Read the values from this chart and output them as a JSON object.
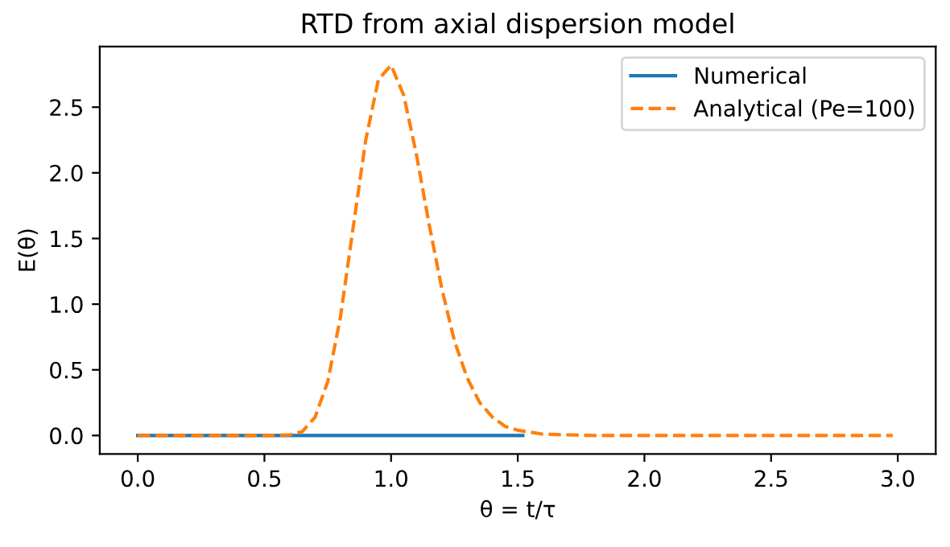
{
  "chart_data": {
    "type": "line",
    "title": "RTD from axial dispersion model",
    "xlabel": "θ = t/τ",
    "ylabel": "E(θ)",
    "xlim": [
      -0.15,
      3.15
    ],
    "ylim": [
      -0.141,
      2.962
    ],
    "xticks": [
      {
        "value": 0,
        "label": "0.0"
      },
      {
        "value": 0.5,
        "label": "0.5"
      },
      {
        "value": 1,
        "label": "1.0"
      },
      {
        "value": 1.5,
        "label": "1.5"
      },
      {
        "value": 2,
        "label": "2.0"
      },
      {
        "value": 2.5,
        "label": "2.5"
      },
      {
        "value": 3,
        "label": "3.0"
      }
    ],
    "yticks": [
      {
        "value": 0,
        "label": "0.0"
      },
      {
        "value": 0.5,
        "label": "0.5"
      },
      {
        "value": 1,
        "label": "1.0"
      },
      {
        "value": 1.5,
        "label": "1.5"
      },
      {
        "value": 2,
        "label": "2.0"
      },
      {
        "value": 2.5,
        "label": "2.5"
      }
    ],
    "legend": "top right",
    "grid": false,
    "series": [
      {
        "name": "Numerical",
        "color": "#1f77b4",
        "line_style": "solid",
        "x": [
          0,
          0.5,
          1.0,
          1.52
        ],
        "values": [
          0,
          0,
          0,
          0
        ]
      },
      {
        "name": "Analytical (Pe=100)",
        "color": "#ff7f0e",
        "line_style": "dashed",
        "x": [
          0,
          0.3,
          0.5,
          0.6,
          0.65,
          0.7,
          0.75,
          0.8,
          0.85,
          0.9,
          0.95,
          1.0,
          1.05,
          1.1,
          1.15,
          1.2,
          1.25,
          1.3,
          1.35,
          1.4,
          1.45,
          1.5,
          1.6,
          1.8,
          2.2,
          2.6,
          2.98
        ],
        "values": [
          0,
          0,
          0,
          0.005,
          0.03,
          0.14,
          0.41,
          0.9,
          1.58,
          2.25,
          2.71,
          2.82,
          2.59,
          2.14,
          1.61,
          1.12,
          0.72,
          0.44,
          0.25,
          0.14,
          0.07,
          0.04,
          0.01,
          0,
          0,
          0,
          0
        ]
      }
    ]
  }
}
